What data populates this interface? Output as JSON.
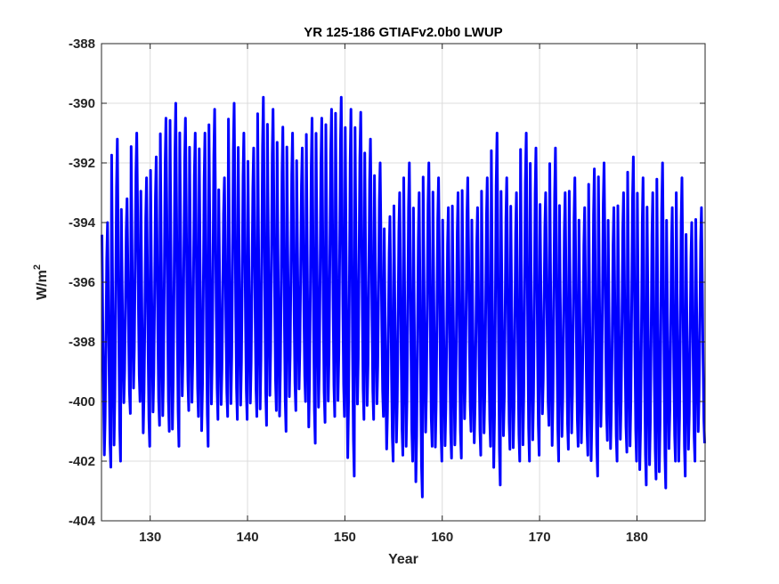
{
  "chart_data": {
    "type": "line",
    "title": "YR 125-186 GTIAFv2.0b0 LWUP",
    "xlabel": "Year",
    "ylabel": "W/m",
    "ylabel_superscript": "2",
    "xlim": [
      125,
      187
    ],
    "ylim": [
      -404,
      -388
    ],
    "xticks": [
      130,
      140,
      150,
      160,
      170,
      180
    ],
    "yticks": [
      -404,
      -402,
      -400,
      -398,
      -396,
      -394,
      -392,
      -390,
      -388
    ],
    "grid": true,
    "line_color": "#0000ff",
    "series": [
      {
        "samples_per_year": 12,
        "annual_cycle": {
          "years": [
            125,
            126,
            127,
            128,
            129,
            130,
            131,
            132,
            133,
            134,
            135,
            136,
            137,
            138,
            139,
            140,
            141,
            142,
            143,
            144,
            145,
            146,
            147,
            148,
            149,
            150,
            151,
            152,
            153,
            154,
            155,
            156,
            157,
            158,
            159,
            160,
            161,
            162,
            163,
            164,
            165,
            166,
            167,
            168,
            169,
            170,
            171,
            172,
            173,
            174,
            175,
            176,
            177,
            178,
            179,
            180,
            181,
            182,
            183,
            184,
            185,
            186
          ],
          "max": [
            -394.0,
            -391.2,
            -393.2,
            -391.0,
            -392.5,
            -391.8,
            -390.5,
            -390.0,
            -390.5,
            -391.0,
            -391.0,
            -390.2,
            -392.5,
            -390.0,
            -391.0,
            -391.5,
            -389.8,
            -390.2,
            -390.8,
            -391.0,
            -391.5,
            -390.5,
            -390.5,
            -390.2,
            -389.8,
            -390.2,
            -390.3,
            -391.2,
            -392.0,
            -393.8,
            -393.0,
            -392.0,
            -393.0,
            -392.0,
            -392.5,
            -393.5,
            -393.0,
            -392.5,
            -393.5,
            -392.5,
            -391.0,
            -392.5,
            -393.0,
            -391.0,
            -391.5,
            -393.0,
            -391.5,
            -393.0,
            -392.5,
            -393.5,
            -392.2,
            -392.0,
            -393.5,
            -393.0,
            -391.8,
            -392.5,
            -393.0,
            -392.0,
            -393.5,
            -392.5,
            -394.0,
            -393.5
          ],
          "min": [
            -402.2,
            -402.0,
            -400.4,
            -400.0,
            -401.5,
            -400.8,
            -401.0,
            -401.5,
            -400.3,
            -400.5,
            -401.5,
            -400.6,
            -400.5,
            -400.6,
            -400.6,
            -400.5,
            -400.8,
            -400.3,
            -401.0,
            -400.3,
            -400.0,
            -401.4,
            -400.7,
            -400.5,
            -400.5,
            -402.5,
            -400.6,
            -400.6,
            -400.5,
            -402.0,
            -401.8,
            -402.0,
            -403.2,
            -401.5,
            -402.0,
            -401.9,
            -401.9,
            -401.0,
            -401.8,
            -401.5,
            -402.8,
            -401.6,
            -402.0,
            -402.0,
            -401.8,
            -400.8,
            -402.0,
            -401.6,
            -401.5,
            -401.8,
            -402.5,
            -401.3,
            -402.0,
            -401.7,
            -402.0,
            -402.8,
            -402.6,
            -402.9,
            -402.0,
            -402.5,
            -402.0,
            -401.4
          ]
        }
      }
    ]
  }
}
